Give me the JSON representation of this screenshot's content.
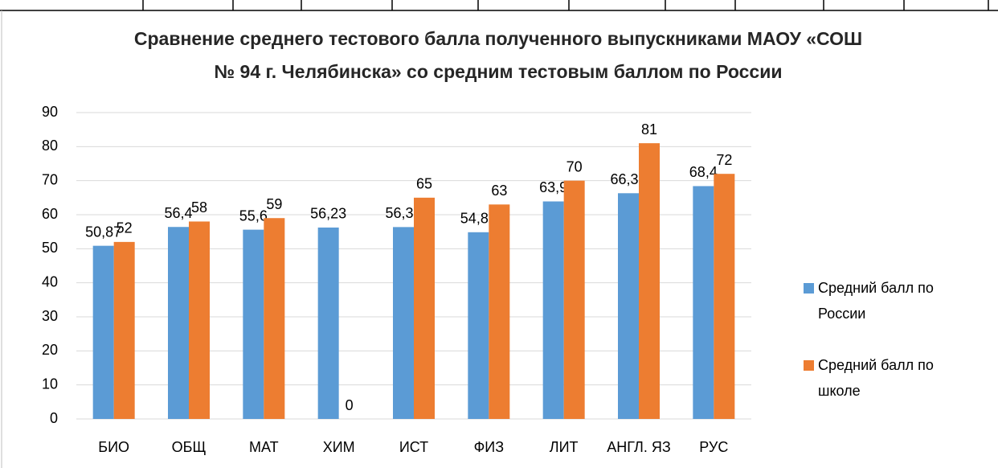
{
  "chart_data": {
    "type": "bar",
    "title": "Сравнение среднего тестового балла полученного выпускниками МАОУ «СОШ № 94 г. Челябинска» со средним тестовым баллом по России",
    "categories": [
      "БИО",
      "ОБЩ",
      "МАТ",
      "ХИМ",
      "ИСТ",
      "ФИЗ",
      "ЛИТ",
      "АНГЛ. ЯЗ",
      "РУС"
    ],
    "series": [
      {
        "name": "Средний балл по России",
        "color": "#5b9bd5",
        "values": [
          50.87,
          56.4,
          55.6,
          56.23,
          56.37,
          54.85,
          63.9,
          66.31,
          68.4
        ],
        "value_labels": [
          "50,87",
          "56,4",
          "55,6",
          "56,23",
          "56,37",
          "54,85",
          "63,9",
          "66,31",
          "68,4"
        ]
      },
      {
        "name": "Средний балл по школе",
        "color": "#ed7d31",
        "values": [
          52,
          58,
          59,
          0,
          65,
          63,
          70,
          81,
          72
        ]
      }
    ],
    "ylim": [
      0,
      90
    ],
    "yticks": [
      0,
      10,
      20,
      30,
      40,
      50,
      60,
      70,
      80,
      90
    ],
    "grid": true,
    "legend": "right"
  }
}
